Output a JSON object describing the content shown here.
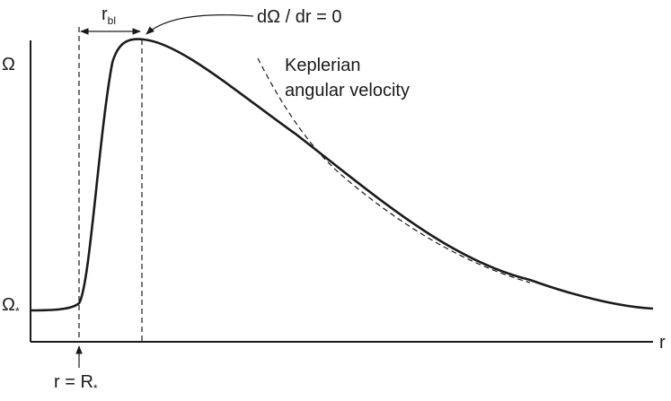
{
  "axis_labels": {
    "y": "Ω",
    "x": "r"
  },
  "omega_star": {
    "main": "Ω",
    "sub": "*"
  },
  "stellar_radius": {
    "main": "r = R",
    "sub": "*"
  },
  "boundary_layer": {
    "main": "r",
    "sub": "bl"
  },
  "peak_condition": "dΩ / dr = 0",
  "keplerian_label": [
    "Keplerian",
    "angular velocity"
  ]
}
